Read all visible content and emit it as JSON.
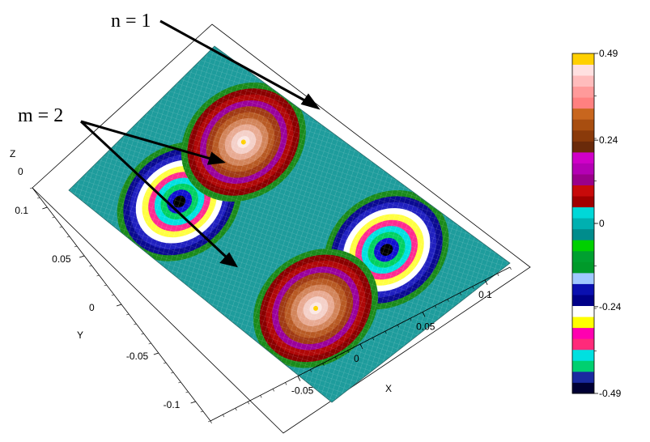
{
  "chart_data": {
    "type": "heatmap",
    "title": "",
    "annotations": [
      {
        "id": "n",
        "text": "n = 1"
      },
      {
        "id": "m",
        "text": "m = 2"
      }
    ],
    "axes": {
      "x": {
        "label": "X",
        "ticks": [
          "-0.05",
          "0",
          "0.05",
          "0.1"
        ],
        "range": [
          -0.12,
          0.12
        ]
      },
      "y": {
        "label": "Y",
        "ticks": [
          "-0.1",
          "-0.05",
          "0",
          "0.05",
          "0.1"
        ],
        "range": [
          -0.12,
          0.12
        ]
      },
      "z": {
        "label": "Z",
        "ticks": [
          "0"
        ]
      }
    },
    "mode": {
      "n": 1,
      "m": 2
    },
    "extrema": [
      {
        "x": -0.05,
        "y": 0.06,
        "value": -0.49
      },
      {
        "x": 0.05,
        "y": -0.06,
        "value": -0.49
      },
      {
        "x": 0.05,
        "y": 0.06,
        "value": 0.49
      },
      {
        "x": -0.05,
        "y": -0.06,
        "value": 0.49
      }
    ],
    "colorbar": {
      "min": -0.49,
      "max": 0.49,
      "tick_labels": [
        "0.49",
        "0.24",
        "0",
        "-0.24",
        "-0.49"
      ],
      "tick_values": [
        0.49,
        0.24,
        0,
        -0.24,
        -0.49
      ],
      "colors": [
        "#000033",
        "#1a2aa0",
        "#00d070",
        "#00e0e0",
        "#ff2a7a",
        "#ff00b0",
        "#ffff00",
        "#ffffff",
        "#000088",
        "#0a10b0",
        "#a0c8ff",
        "#009a2a",
        "#00a030",
        "#00d000",
        "#008c8c",
        "#00b0b0",
        "#00d8d8",
        "#a00000",
        "#c80a0a",
        "#9a008a",
        "#b400b4",
        "#d000c8",
        "#6a2a0a",
        "#8a3a0a",
        "#a84e10",
        "#c8661e",
        "#ff8080",
        "#ff9a9a",
        "#ffbcbc",
        "#ffe0e0",
        "#ffd000"
      ]
    }
  }
}
